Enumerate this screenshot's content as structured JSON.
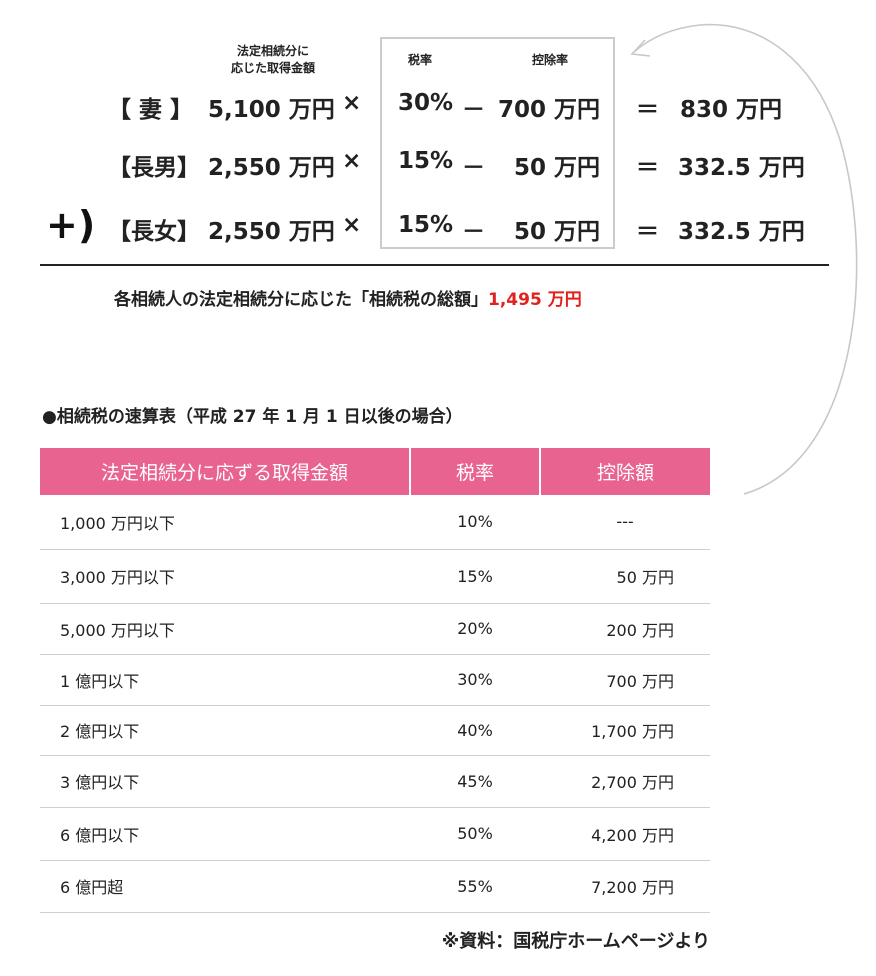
{
  "calc": {
    "amount_header": [
      "法定相続分に",
      "応じた取得金額"
    ],
    "rate_header": "税率",
    "deduction_header": "控除率",
    "rows": [
      {
        "heir": "【 妻 】",
        "amount": "5,100 万円",
        "times": "×",
        "rate": "30%",
        "minus": "－",
        "deduction": "700 万円",
        "equals": "＝",
        "result": "830 万円"
      },
      {
        "heir": "【長男】",
        "amount": "2,550 万円",
        "times": "×",
        "rate": "15%",
        "minus": "－",
        "deduction": "50 万円",
        "equals": "＝",
        "result": "332.5 万円"
      },
      {
        "heir": "【長女】",
        "amount": "2,550 万円",
        "times": "×",
        "rate": "15%",
        "minus": "－",
        "deduction": "50 万円",
        "equals": "＝",
        "result": "332.5 万円"
      }
    ],
    "plus_mark": "+)",
    "total_text": "各相続人の法定相続分に応じた「相続税の総額」",
    "total_amount": "1,495 万円"
  },
  "table": {
    "title": "●相続税の速算表（平成 27 年 1 月 1 日以後の場合）",
    "headers": [
      "法定相続分に応ずる取得金額",
      "税率",
      "控除額"
    ],
    "rows": [
      {
        "amount": "1,000 万円以下",
        "rate": "10%",
        "deduction": "---"
      },
      {
        "amount": "3,000 万円以下",
        "rate": "15%",
        "deduction": "50 万円"
      },
      {
        "amount": "5,000 万円以下",
        "rate": "20%",
        "deduction": "200 万円"
      },
      {
        "amount": "1 億円以下",
        "rate": "30%",
        "deduction": "700 万円"
      },
      {
        "amount": "2 億円以下",
        "rate": "40%",
        "deduction": "1,700 万円"
      },
      {
        "amount": "3 億円以下",
        "rate": "45%",
        "deduction": "2,700 万円"
      },
      {
        "amount": "6 億円以下",
        "rate": "50%",
        "deduction": "4,200 万円"
      },
      {
        "amount": "6 億円超",
        "rate": "55%",
        "deduction": "7,200 万円"
      }
    ],
    "source": "※資料：国税庁ホームページより"
  },
  "colors": {
    "header_bg": "#e8638f",
    "total_amount": "#e0221e",
    "box_border": "#cccccc",
    "arrow": "#bbbbbb"
  }
}
